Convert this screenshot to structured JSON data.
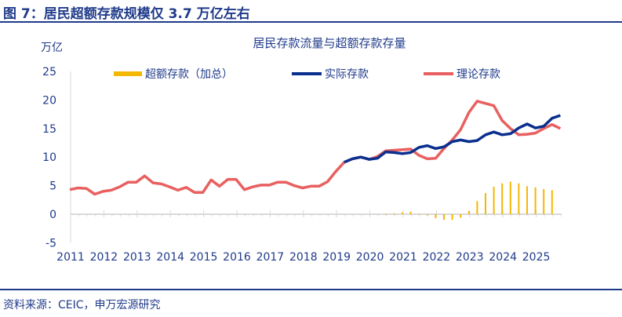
{
  "header": {
    "title": "图 7：居民超额存款规模仅 3.7 万亿左右"
  },
  "footer": {
    "source": "资料来源：CEIC，申万宏源研究"
  },
  "chart_data": {
    "type": "bar+line",
    "title": "居民存款流量与超额存款存量",
    "ylabel": "万亿",
    "ylim": [
      -5,
      25
    ],
    "yticks": [
      "25",
      "20",
      "15",
      "10",
      "5",
      "0",
      "-5"
    ],
    "ytick_values": [
      25,
      20,
      15,
      10,
      5,
      0,
      -5
    ],
    "xticks": [
      "2011",
      "2012",
      "2013",
      "2014",
      "2015",
      "2016",
      "2017",
      "2018",
      "2019",
      "2020",
      "2021",
      "2022",
      "2023",
      "2024",
      "2025"
    ],
    "x_start": 2011,
    "x_step": 0.25,
    "legend_placement": "top",
    "colors": {
      "bar": "#f5b800",
      "actual": "#0a2f8f",
      "theory": "#e8605f"
    },
    "series": [
      {
        "name": "超额存款（加总）",
        "kind": "bar",
        "start_index": 38,
        "values": [
          0.1,
          0.15,
          0.3,
          0.45,
          0.1,
          -0.2,
          -0.7,
          -1.0,
          -1.0,
          -0.6,
          0.55,
          2.3,
          3.7,
          4.8,
          5.4,
          5.7,
          5.4,
          4.9,
          4.7,
          4.4,
          4.2
        ]
      },
      {
        "name": "实际存款",
        "kind": "line",
        "start_index": 33,
        "values": [
          9.1,
          9.7,
          10.0,
          9.6,
          9.8,
          10.9,
          10.8,
          10.6,
          10.8,
          11.7,
          12.0,
          11.5,
          11.8,
          12.7,
          13.0,
          12.7,
          12.9,
          13.9,
          14.4,
          13.9,
          14.1,
          15.1,
          15.8,
          15.1,
          15.4,
          16.8,
          17.3
        ]
      },
      {
        "name": "理论存款",
        "kind": "line",
        "start_index": 0,
        "values": [
          4.3,
          4.6,
          4.5,
          3.5,
          4.0,
          4.2,
          4.8,
          5.6,
          5.6,
          6.7,
          5.5,
          5.3,
          4.8,
          4.2,
          4.7,
          3.8,
          3.8,
          6.0,
          4.9,
          6.1,
          6.1,
          4.3,
          4.8,
          5.1,
          5.1,
          5.6,
          5.6,
          5.0,
          4.6,
          4.9,
          4.9,
          5.7,
          7.5,
          9.1,
          9.7,
          10.0,
          9.6,
          10.1,
          11.1,
          11.2,
          11.3,
          11.4,
          10.3,
          9.7,
          9.8,
          11.5,
          13.0,
          14.8,
          17.8,
          19.8,
          19.4,
          19.0,
          16.4,
          15.0,
          13.9,
          14.0,
          14.2,
          15.0,
          15.7,
          15.0
        ]
      }
    ]
  }
}
